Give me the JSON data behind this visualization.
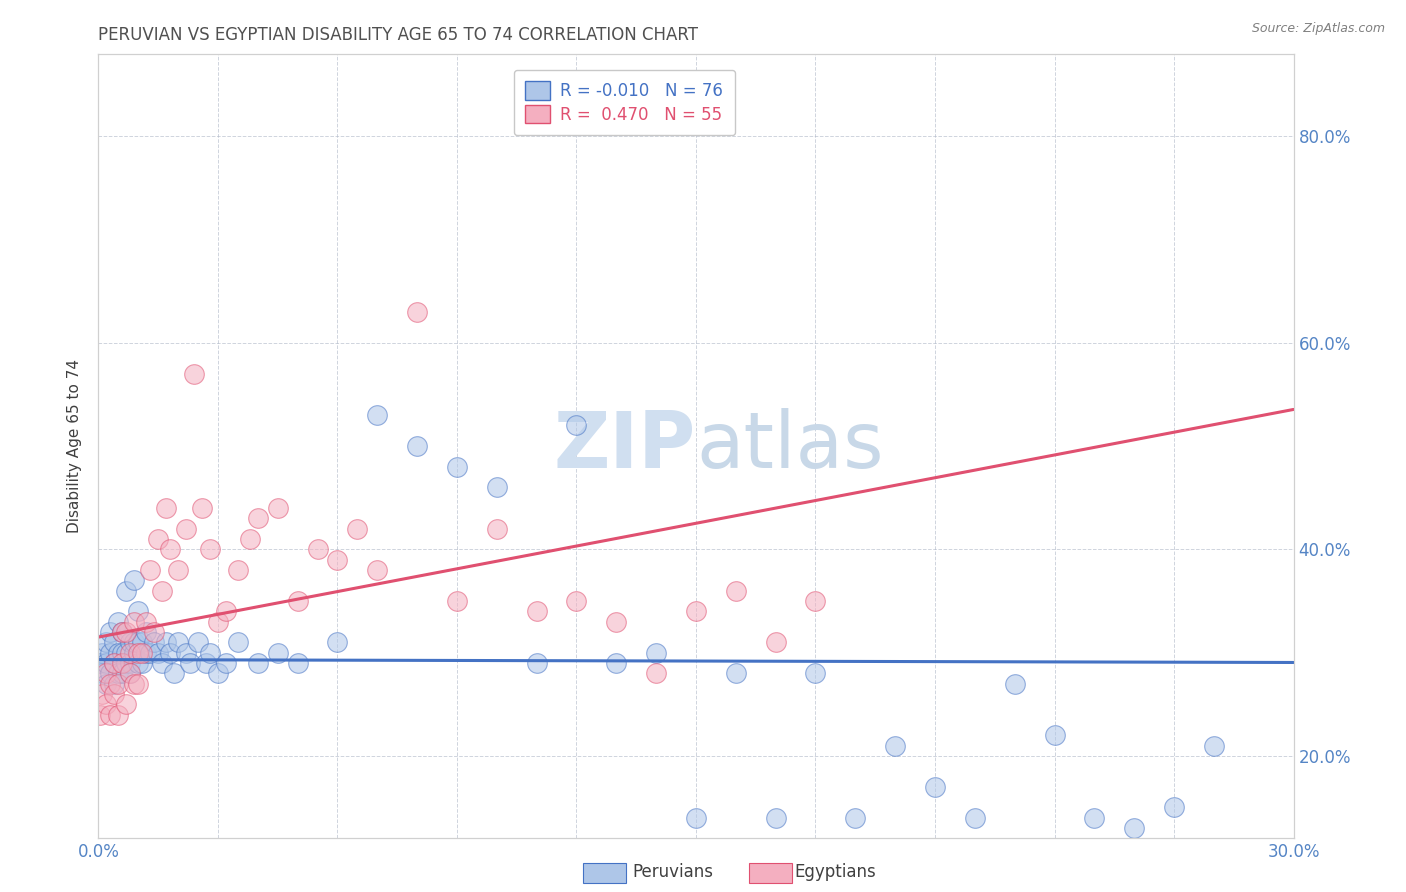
{
  "title": "PERUVIAN VS EGYPTIAN DISABILITY AGE 65 TO 74 CORRELATION CHART",
  "source_text": "Source: ZipAtlas.com",
  "ylabel_label": "Disability Age 65 to 74",
  "legend_label1": "Peruvians",
  "legend_label2": "Egyptians",
  "R1": "-0.010",
  "N1": "76",
  "R2": "0.470",
  "N2": "55",
  "peruvian_color": "#aec6e8",
  "egyptian_color": "#f4afc0",
  "trend_peruvian_color": "#4472c4",
  "trend_egyptian_color": "#e05070",
  "xlim": [
    0.0,
    0.3
  ],
  "ylim": [
    0.12,
    0.88
  ],
  "background_color": "#ffffff",
  "grid_color": "#b0b8c8",
  "title_color": "#505050",
  "tick_label_color": "#5585c5",
  "watermark_color": "#d0dff0",
  "peruvian_scatter_x": [
    0.0005,
    0.001,
    0.001,
    0.002,
    0.002,
    0.002,
    0.003,
    0.003,
    0.003,
    0.004,
    0.004,
    0.004,
    0.005,
    0.005,
    0.005,
    0.006,
    0.006,
    0.006,
    0.007,
    0.007,
    0.007,
    0.008,
    0.008,
    0.008,
    0.009,
    0.009,
    0.009,
    0.01,
    0.01,
    0.01,
    0.011,
    0.011,
    0.012,
    0.012,
    0.013,
    0.014,
    0.015,
    0.016,
    0.017,
    0.018,
    0.019,
    0.02,
    0.022,
    0.023,
    0.025,
    0.027,
    0.028,
    0.03,
    0.032,
    0.035,
    0.04,
    0.045,
    0.05,
    0.06,
    0.07,
    0.08,
    0.09,
    0.1,
    0.11,
    0.12,
    0.13,
    0.14,
    0.15,
    0.16,
    0.17,
    0.18,
    0.19,
    0.2,
    0.21,
    0.22,
    0.23,
    0.24,
    0.25,
    0.26,
    0.27,
    0.28
  ],
  "peruvian_scatter_y": [
    0.29,
    0.3,
    0.28,
    0.31,
    0.29,
    0.27,
    0.3,
    0.28,
    0.32,
    0.29,
    0.31,
    0.27,
    0.3,
    0.28,
    0.33,
    0.3,
    0.28,
    0.32,
    0.29,
    0.3,
    0.36,
    0.29,
    0.31,
    0.28,
    0.3,
    0.31,
    0.37,
    0.29,
    0.31,
    0.34,
    0.29,
    0.31,
    0.3,
    0.32,
    0.3,
    0.31,
    0.3,
    0.29,
    0.31,
    0.3,
    0.28,
    0.31,
    0.3,
    0.29,
    0.31,
    0.29,
    0.3,
    0.28,
    0.29,
    0.31,
    0.29,
    0.3,
    0.29,
    0.31,
    0.53,
    0.5,
    0.48,
    0.46,
    0.29,
    0.52,
    0.29,
    0.3,
    0.14,
    0.28,
    0.14,
    0.28,
    0.14,
    0.21,
    0.17,
    0.14,
    0.27,
    0.22,
    0.14,
    0.13,
    0.15,
    0.21
  ],
  "egyptian_scatter_x": [
    0.0005,
    0.001,
    0.002,
    0.002,
    0.003,
    0.003,
    0.004,
    0.004,
    0.005,
    0.005,
    0.006,
    0.006,
    0.007,
    0.007,
    0.008,
    0.008,
    0.009,
    0.009,
    0.01,
    0.01,
    0.011,
    0.012,
    0.013,
    0.014,
    0.015,
    0.016,
    0.017,
    0.018,
    0.02,
    0.022,
    0.024,
    0.026,
    0.028,
    0.03,
    0.032,
    0.035,
    0.038,
    0.04,
    0.045,
    0.05,
    0.055,
    0.06,
    0.065,
    0.07,
    0.08,
    0.09,
    0.1,
    0.11,
    0.12,
    0.13,
    0.14,
    0.15,
    0.16,
    0.17,
    0.18
  ],
  "egyptian_scatter_y": [
    0.24,
    0.26,
    0.25,
    0.28,
    0.24,
    0.27,
    0.26,
    0.29,
    0.24,
    0.27,
    0.29,
    0.32,
    0.25,
    0.32,
    0.28,
    0.3,
    0.27,
    0.33,
    0.27,
    0.3,
    0.3,
    0.33,
    0.38,
    0.32,
    0.41,
    0.36,
    0.44,
    0.4,
    0.38,
    0.42,
    0.57,
    0.44,
    0.4,
    0.33,
    0.34,
    0.38,
    0.41,
    0.43,
    0.44,
    0.35,
    0.4,
    0.39,
    0.42,
    0.38,
    0.63,
    0.35,
    0.42,
    0.34,
    0.35,
    0.33,
    0.28,
    0.34,
    0.36,
    0.31,
    0.35
  ]
}
